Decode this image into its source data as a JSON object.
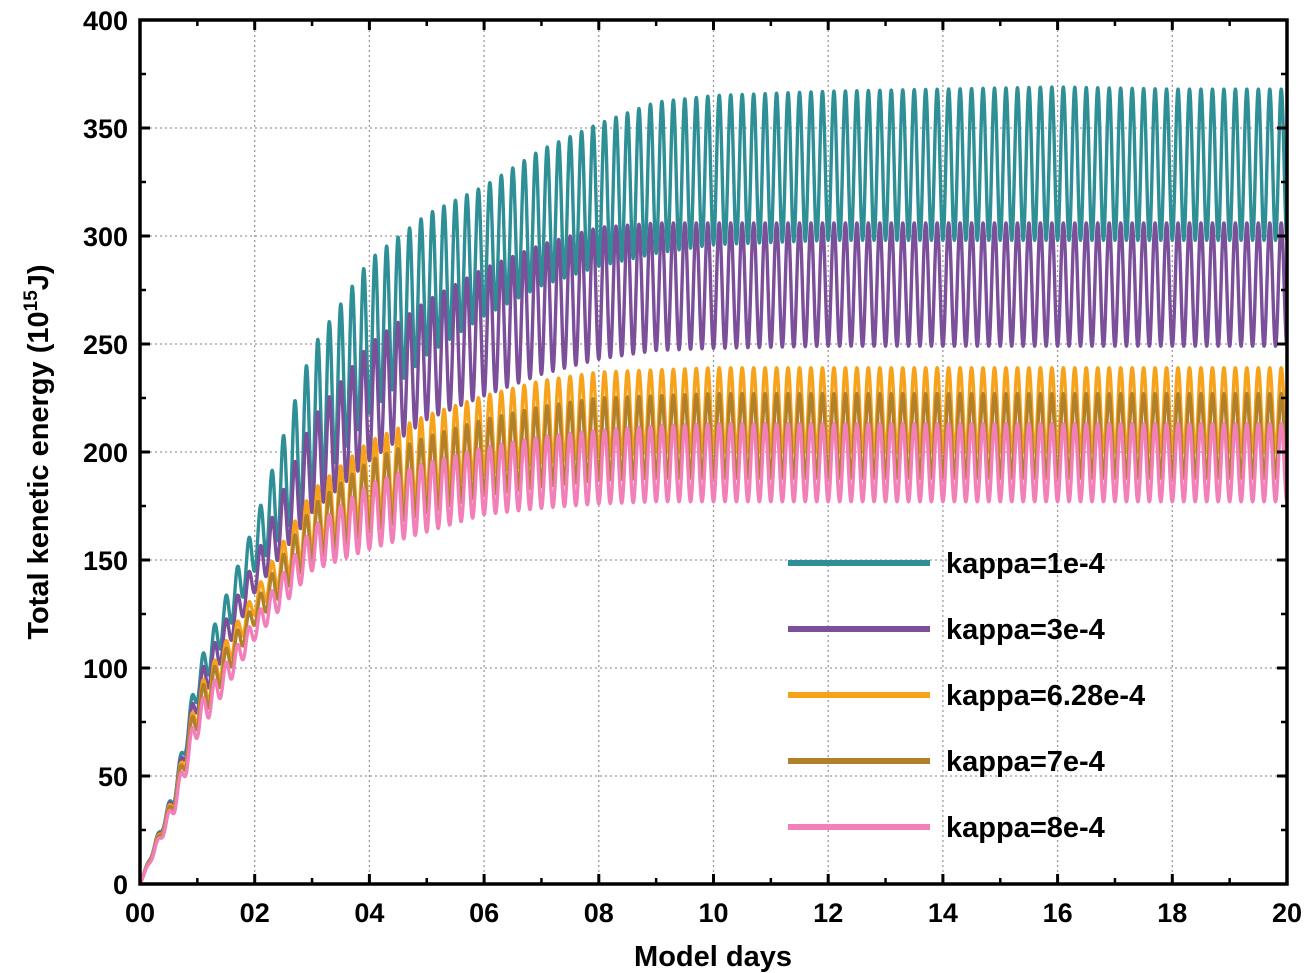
{
  "chart_data": {
    "type": "line",
    "xlabel": "Model days",
    "ylabel_main": "Total kenetic energy (10",
    "ylabel_exp": "15",
    "ylabel_unit": "J)",
    "xlim": [
      0,
      20
    ],
    "ylim": [
      0,
      400
    ],
    "xticks": [
      0,
      2,
      4,
      6,
      8,
      10,
      12,
      14,
      16,
      18,
      20
    ],
    "xtick_labels": [
      "00",
      "02",
      "04",
      "06",
      "08",
      "10",
      "12",
      "14",
      "16",
      "18",
      "20"
    ],
    "yticks": [
      0,
      50,
      100,
      150,
      200,
      250,
      300,
      350,
      400
    ],
    "ytick_labels": [
      "0",
      "50",
      "100",
      "150",
      "200",
      "250",
      "300",
      "350",
      "400"
    ],
    "grid": true,
    "legend_position": "lower-right",
    "oscillation_period_days": 0.2,
    "series": [
      {
        "name": "kappa=1e-4",
        "color": "#2e8f96",
        "envelope_days": [
          0,
          0.6,
          1.0,
          2.0,
          3.0,
          4.0,
          5.0,
          6.0,
          7.0,
          8.0,
          9.0,
          10.0,
          12.0,
          14.0,
          16.0,
          18.0,
          20.0
        ],
        "envelope_max": [
          0,
          45,
          100,
          167,
          248,
          289,
          310,
          323,
          340,
          352,
          362,
          365,
          367,
          368,
          369,
          368,
          368
        ],
        "envelope_min": [
          0,
          38,
          85,
          145,
          180,
          218,
          245,
          263,
          277,
          286,
          292,
          296,
          298,
          298,
          298,
          298,
          298
        ]
      },
      {
        "name": "kappa=3e-4",
        "color": "#7b4f9a",
        "envelope_days": [
          0,
          0.6,
          1.0,
          2.0,
          3.0,
          4.0,
          5.0,
          6.0,
          7.0,
          8.0,
          9.0,
          10.0,
          12.0,
          14.0,
          16.0,
          18.0,
          20.0
        ],
        "envelope_max": [
          0,
          44,
          95,
          150,
          215,
          250,
          270,
          285,
          296,
          304,
          306,
          306,
          306,
          306,
          306,
          306,
          306
        ],
        "envelope_min": [
          0,
          37,
          80,
          135,
          172,
          196,
          215,
          226,
          236,
          243,
          247,
          248,
          249,
          249,
          249,
          249,
          249
        ]
      },
      {
        "name": "kappa=6.28e-4",
        "color": "#f7a21b",
        "envelope_days": [
          0,
          0.6,
          1.0,
          2.0,
          3.0,
          4.0,
          5.0,
          6.0,
          7.0,
          8.0,
          9.0,
          10.0,
          12.0,
          14.0,
          16.0,
          18.0,
          20.0
        ],
        "envelope_max": [
          0,
          43,
          90,
          135,
          182,
          205,
          217,
          226,
          233,
          237,
          238,
          239,
          239,
          239,
          239,
          239,
          239
        ],
        "envelope_min": [
          0,
          36,
          75,
          125,
          155,
          170,
          180,
          190,
          195,
          198,
          200,
          200,
          200,
          200,
          200,
          200,
          200
        ]
      },
      {
        "name": "kappa=7e-4",
        "color": "#b3802a",
        "envelope_days": [
          0,
          0.6,
          1.0,
          2.0,
          3.0,
          4.0,
          5.0,
          6.0,
          7.0,
          8.0,
          9.0,
          10.0,
          12.0,
          14.0,
          16.0,
          18.0,
          20.0
        ],
        "envelope_max": [
          0,
          42,
          88,
          130,
          175,
          196,
          207,
          215,
          221,
          225,
          226,
          227,
          227,
          227,
          227,
          227,
          227
        ],
        "envelope_min": [
          0,
          35,
          72,
          120,
          150,
          163,
          172,
          180,
          184,
          187,
          188,
          188,
          188,
          188,
          188,
          188,
          188
        ]
      },
      {
        "name": "kappa=8e-4",
        "color": "#f27fb8",
        "envelope_days": [
          0,
          0.6,
          1.0,
          2.0,
          3.0,
          4.0,
          5.0,
          6.0,
          7.0,
          8.0,
          9.0,
          10.0,
          12.0,
          14.0,
          16.0,
          18.0,
          20.0
        ],
        "envelope_max": [
          0,
          40,
          82,
          123,
          165,
          185,
          195,
          202,
          207,
          210,
          212,
          213,
          213,
          213,
          213,
          213,
          213
        ],
        "envelope_min": [
          0,
          33,
          68,
          113,
          145,
          155,
          163,
          171,
          174,
          176,
          177,
          177,
          177,
          177,
          177,
          177,
          177
        ]
      }
    ]
  }
}
